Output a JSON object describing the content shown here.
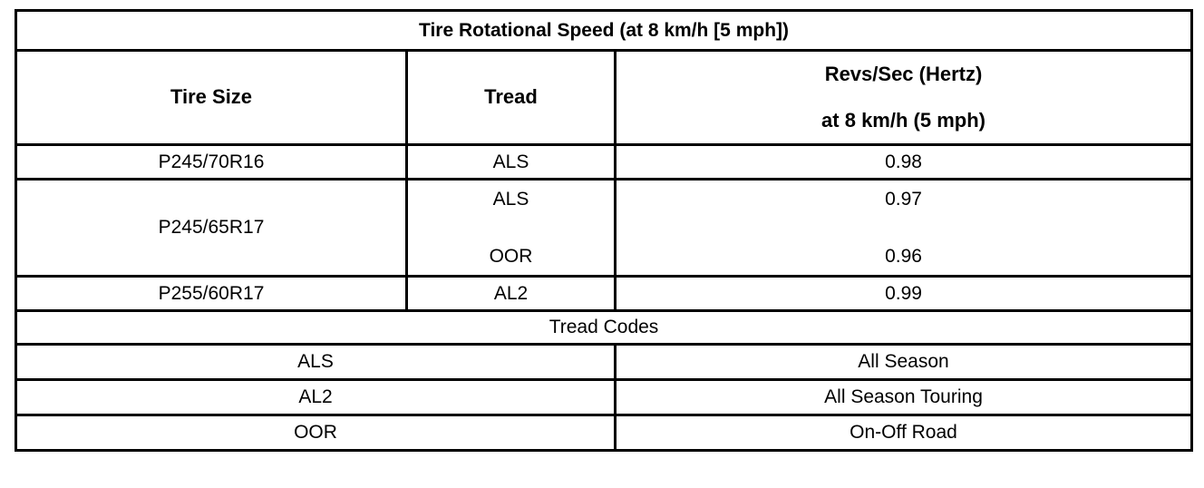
{
  "title": "Tire Rotational Speed (at 8 km/h [5 mph])",
  "header": {
    "tire_size": "Tire Size",
    "tread": "Tread",
    "revs_line1": "Revs/Sec (Hertz)",
    "revs_line2": "at 8 km/h (5 mph)"
  },
  "rows": [
    {
      "tire": "P245/70R16",
      "tread": "ALS",
      "revs": "0.98"
    },
    {
      "tire": "P245/65R17",
      "tread_top": "ALS",
      "revs_top": "0.97",
      "tread_bottom": "OOR",
      "revs_bottom": "0.96"
    },
    {
      "tire": "P255/60R17",
      "tread": "AL2",
      "revs": "0.99"
    }
  ],
  "tread_codes": {
    "title": "Tread Codes",
    "items": [
      {
        "code": "ALS",
        "desc": "All Season"
      },
      {
        "code": "AL2",
        "desc": "All Season Touring"
      },
      {
        "code": "OOR",
        "desc": "On-Off Road"
      }
    ]
  },
  "colors": {
    "border": "#000000",
    "background": "#ffffff",
    "text": "#000000"
  }
}
